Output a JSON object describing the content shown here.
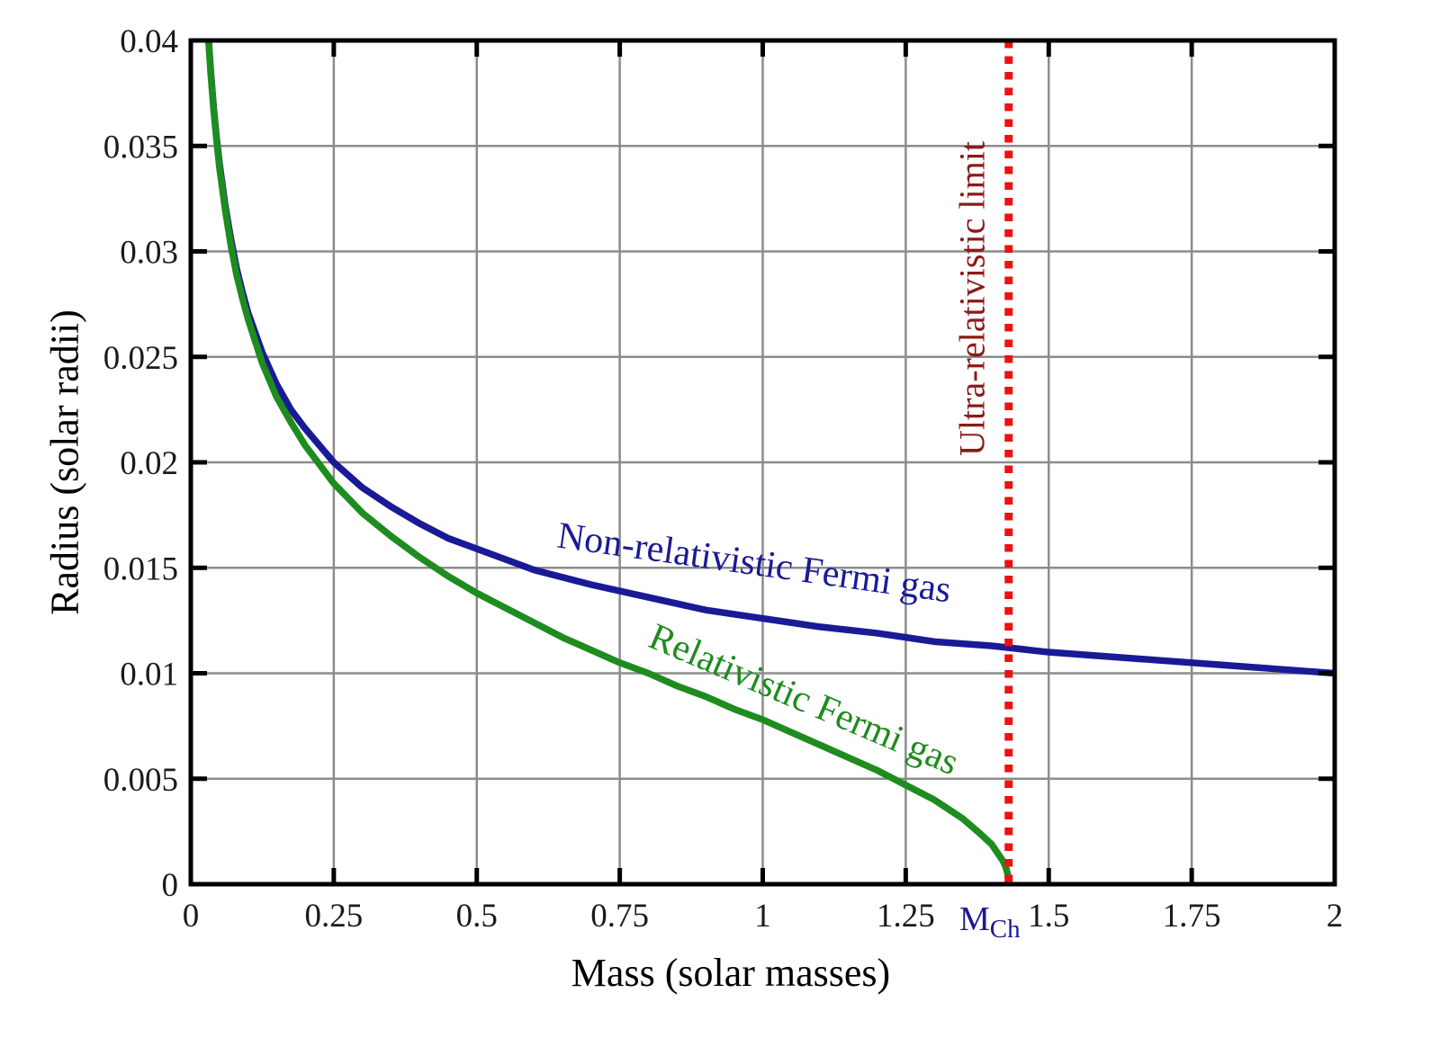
{
  "chart_data": {
    "type": "line",
    "title": "",
    "xlabel": "Mass (solar masses)",
    "ylabel": "Radius (solar radii)",
    "xlim": [
      0,
      2
    ],
    "ylim": [
      0,
      0.04
    ],
    "grid": true,
    "legend_position": "none",
    "background": "#ffffff",
    "axes": {
      "border_color": "#000000",
      "grid_color": "#8c8c8c",
      "tick_color": "#000000",
      "tick_label_color": "#1a1a1a",
      "tick_label_size": 37
    },
    "xticks": {
      "values": [
        0,
        0.25,
        0.5,
        0.75,
        1,
        1.25,
        1.5,
        1.75,
        2
      ],
      "labels": [
        "0",
        "0.25",
        "0.5",
        "0.75",
        "1",
        "1.25",
        "1.5",
        "1.75",
        "2"
      ]
    },
    "yticks": {
      "values": [
        0,
        0.005,
        0.01,
        0.015,
        0.02,
        0.025,
        0.03,
        0.035,
        0.04
      ],
      "labels": [
        "0",
        "0.005",
        "0.01",
        "0.015",
        "0.02",
        "0.025",
        "0.03",
        "0.035",
        "0.04"
      ]
    },
    "series": [
      {
        "name": "Non-relativistic Fermi gas",
        "color": "#1a1a96",
        "width": 7.5,
        "x": [
          0.0312,
          0.035,
          0.04,
          0.045,
          0.05,
          0.06,
          0.07,
          0.08,
          0.09,
          0.1,
          0.125,
          0.15,
          0.175,
          0.2,
          0.25,
          0.3,
          0.35,
          0.4,
          0.45,
          0.5,
          0.6,
          0.7,
          0.8,
          0.9,
          1.0,
          1.1,
          1.2,
          1.3,
          1.4,
          1.5,
          1.6,
          1.7,
          1.8,
          1.9,
          2.0
        ],
        "y": [
          0.04,
          0.0385,
          0.0368,
          0.0354,
          0.0342,
          0.0322,
          0.0306,
          0.0292,
          0.0281,
          0.0271,
          0.0252,
          0.0237,
          0.0225,
          0.0216,
          0.02,
          0.0188,
          0.0179,
          0.0171,
          0.0164,
          0.0159,
          0.0149,
          0.0142,
          0.0136,
          0.013,
          0.0126,
          0.0122,
          0.0119,
          0.0115,
          0.0113,
          0.011,
          0.0108,
          0.0106,
          0.0104,
          0.0102,
          0.01
        ]
      },
      {
        "name": "Relativistic Fermi gas",
        "color": "#1e8c1e",
        "width": 7.5,
        "x": [
          0.0313,
          0.035,
          0.04,
          0.045,
          0.05,
          0.06,
          0.07,
          0.08,
          0.09,
          0.1,
          0.125,
          0.15,
          0.175,
          0.2,
          0.25,
          0.3,
          0.35,
          0.4,
          0.45,
          0.5,
          0.55,
          0.6,
          0.65,
          0.7,
          0.75,
          0.8,
          0.85,
          0.9,
          0.95,
          1.0,
          1.05,
          1.1,
          1.15,
          1.2,
          1.25,
          1.3,
          1.35,
          1.38,
          1.4,
          1.41,
          1.42,
          1.425,
          1.428,
          1.43
        ],
        "y": [
          0.0399,
          0.0384,
          0.0367,
          0.0353,
          0.034,
          0.032,
          0.0303,
          0.0289,
          0.0278,
          0.0268,
          0.0247,
          0.0231,
          0.0219,
          0.0208,
          0.019,
          0.0176,
          0.0165,
          0.0155,
          0.0146,
          0.0138,
          0.0131,
          0.0124,
          0.0117,
          0.0111,
          0.0105,
          0.01,
          0.0094,
          0.0089,
          0.0083,
          0.0078,
          0.0072,
          0.0066,
          0.006,
          0.0054,
          0.0047,
          0.004,
          0.0031,
          0.0024,
          0.0019,
          0.0015,
          0.0011,
          0.0008,
          0.0005,
          0.0
        ]
      }
    ],
    "vline": {
      "x": 1.43,
      "color": "#ee1111",
      "style": "dotted",
      "width": 9,
      "label": "Ultra-relativistic limit",
      "label_color": "#8b1a1a"
    },
    "annotations": {
      "nonrel": {
        "text": "Non-relativistic Fermi gas",
        "color": "#1a1a96",
        "rotation_deg": 8
      },
      "rel": {
        "text": "Relativistic Fermi gas",
        "color": "#1e8c1e",
        "rotation_deg": 23
      },
      "mch": {
        "main": "M",
        "sub": "Ch",
        "color": "#1a1a96"
      }
    }
  }
}
